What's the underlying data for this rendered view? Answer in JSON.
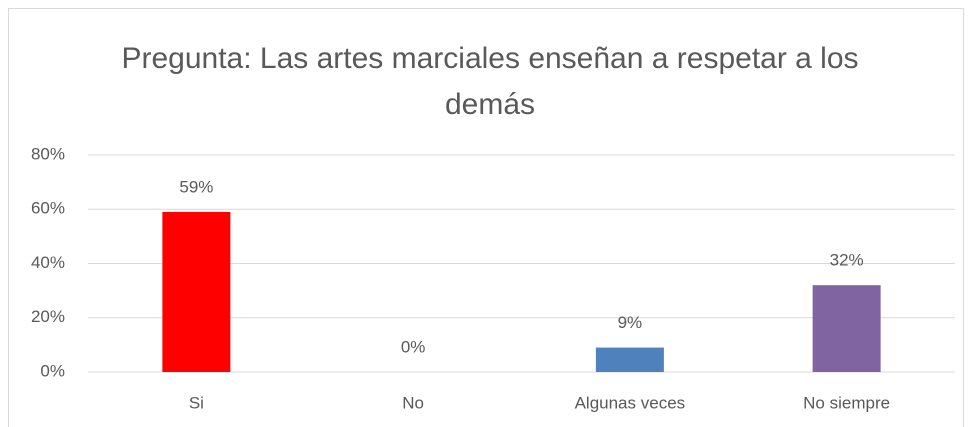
{
  "chart_data": {
    "type": "bar",
    "title": "Pregunta: Las artes marciales enseñan a respetar a los demás",
    "categories": [
      "Si",
      "No",
      "Algunas veces",
      "No siempre"
    ],
    "values": [
      59,
      0,
      9,
      32
    ],
    "value_labels": [
      "59%",
      "0%",
      "9%",
      "32%"
    ],
    "colors": [
      "#ff0000",
      "#c0504d",
      "#4f81bd",
      "#8064a2"
    ],
    "ylim": [
      0,
      80
    ],
    "yticks": [
      {
        "value": 0,
        "label": "0%"
      },
      {
        "value": 20,
        "label": "20%"
      },
      {
        "value": 40,
        "label": "40%"
      },
      {
        "value": 60,
        "label": "60%"
      },
      {
        "value": 80,
        "label": "80%"
      }
    ],
    "grid": true
  }
}
